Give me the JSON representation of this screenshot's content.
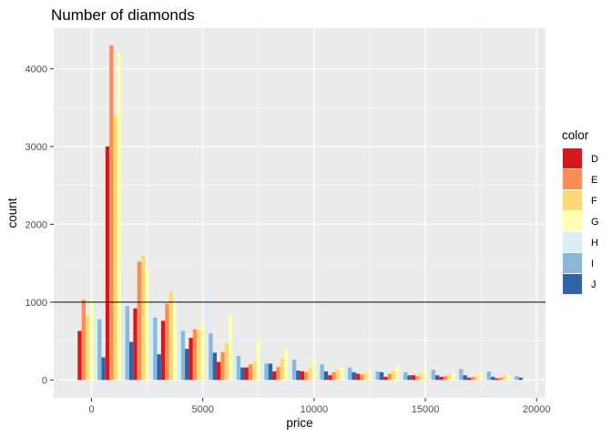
{
  "chart_data": {
    "type": "bar",
    "title": "Number of diamonds",
    "xlabel": "price",
    "ylabel": "count",
    "xlim": [
      -1700,
      20400
    ],
    "ylim": [
      -230,
      4520
    ],
    "x_ticks": [
      0,
      5000,
      10000,
      15000,
      20000
    ],
    "y_ticks": [
      0,
      1000,
      2000,
      3000,
      4000
    ],
    "bin_width": 1250,
    "bin_centers": [
      0,
      1250,
      2500,
      3750,
      5000,
      6250,
      7500,
      8750,
      10000,
      11250,
      12500,
      13750,
      15000,
      16250,
      17500,
      18750
    ],
    "hline": 1000,
    "grid": true,
    "legend": {
      "title": "color",
      "placement": "right"
    },
    "series": [
      {
        "name": "D",
        "color": "#D7191C",
        "values": [
          630,
          3000,
          920,
          760,
          540,
          230,
          160,
          110,
          110,
          60,
          80,
          40,
          60,
          40,
          30,
          20
        ]
      },
      {
        "name": "E",
        "color": "#FC8D59",
        "values": [
          1030,
          4300,
          1520,
          980,
          650,
          360,
          200,
          170,
          100,
          100,
          70,
          80,
          50,
          50,
          40,
          30
        ]
      },
      {
        "name": "F",
        "color": "#FED976",
        "values": [
          830,
          3400,
          1600,
          1140,
          650,
          470,
          240,
          280,
          160,
          130,
          90,
          110,
          80,
          70,
          50,
          60
        ]
      },
      {
        "name": "G",
        "color": "#FFFFB2",
        "values": [
          1050,
          4200,
          1430,
          1000,
          720,
          840,
          510,
          410,
          260,
          170,
          140,
          190,
          130,
          100,
          100,
          60
        ]
      },
      {
        "name": "H",
        "color": "#DCEEF5",
        "values": [
          1020,
          1420,
          1020,
          1020,
          1120,
          560,
          400,
          300,
          200,
          200,
          120,
          100,
          90,
          90,
          80,
          70
        ]
      },
      {
        "name": "I",
        "color": "#8AB8D9",
        "values": [
          780,
          950,
          800,
          630,
          600,
          310,
          210,
          260,
          200,
          160,
          110,
          100,
          130,
          140,
          110,
          50
        ]
      },
      {
        "name": "J",
        "color": "#3163A9",
        "values": [
          290,
          490,
          330,
          400,
          350,
          160,
          210,
          120,
          110,
          100,
          100,
          60,
          60,
          60,
          40,
          30
        ]
      }
    ]
  }
}
